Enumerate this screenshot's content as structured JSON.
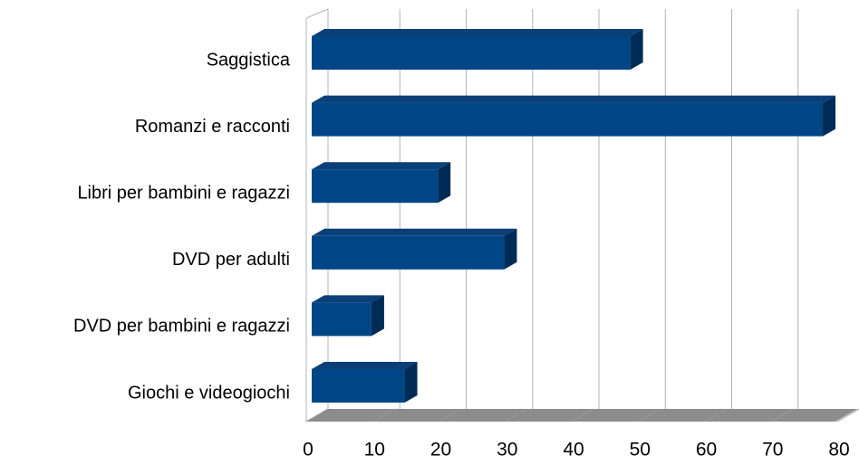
{
  "chart_data": {
    "type": "bar",
    "orientation": "horizontal",
    "categories": [
      "Saggistica",
      "Romanzi e racconti",
      "Libri per bambini e ragazzi",
      "DVD per adulti",
      "DVD per bambini e ragazzi",
      "Giochi e videogiochi"
    ],
    "values": [
      48,
      77,
      19,
      29,
      9,
      14
    ],
    "color": "#004586",
    "xlim": [
      0,
      80
    ],
    "xticks": [
      0,
      10,
      20,
      30,
      40,
      50,
      60,
      70,
      80
    ],
    "grid": true
  }
}
